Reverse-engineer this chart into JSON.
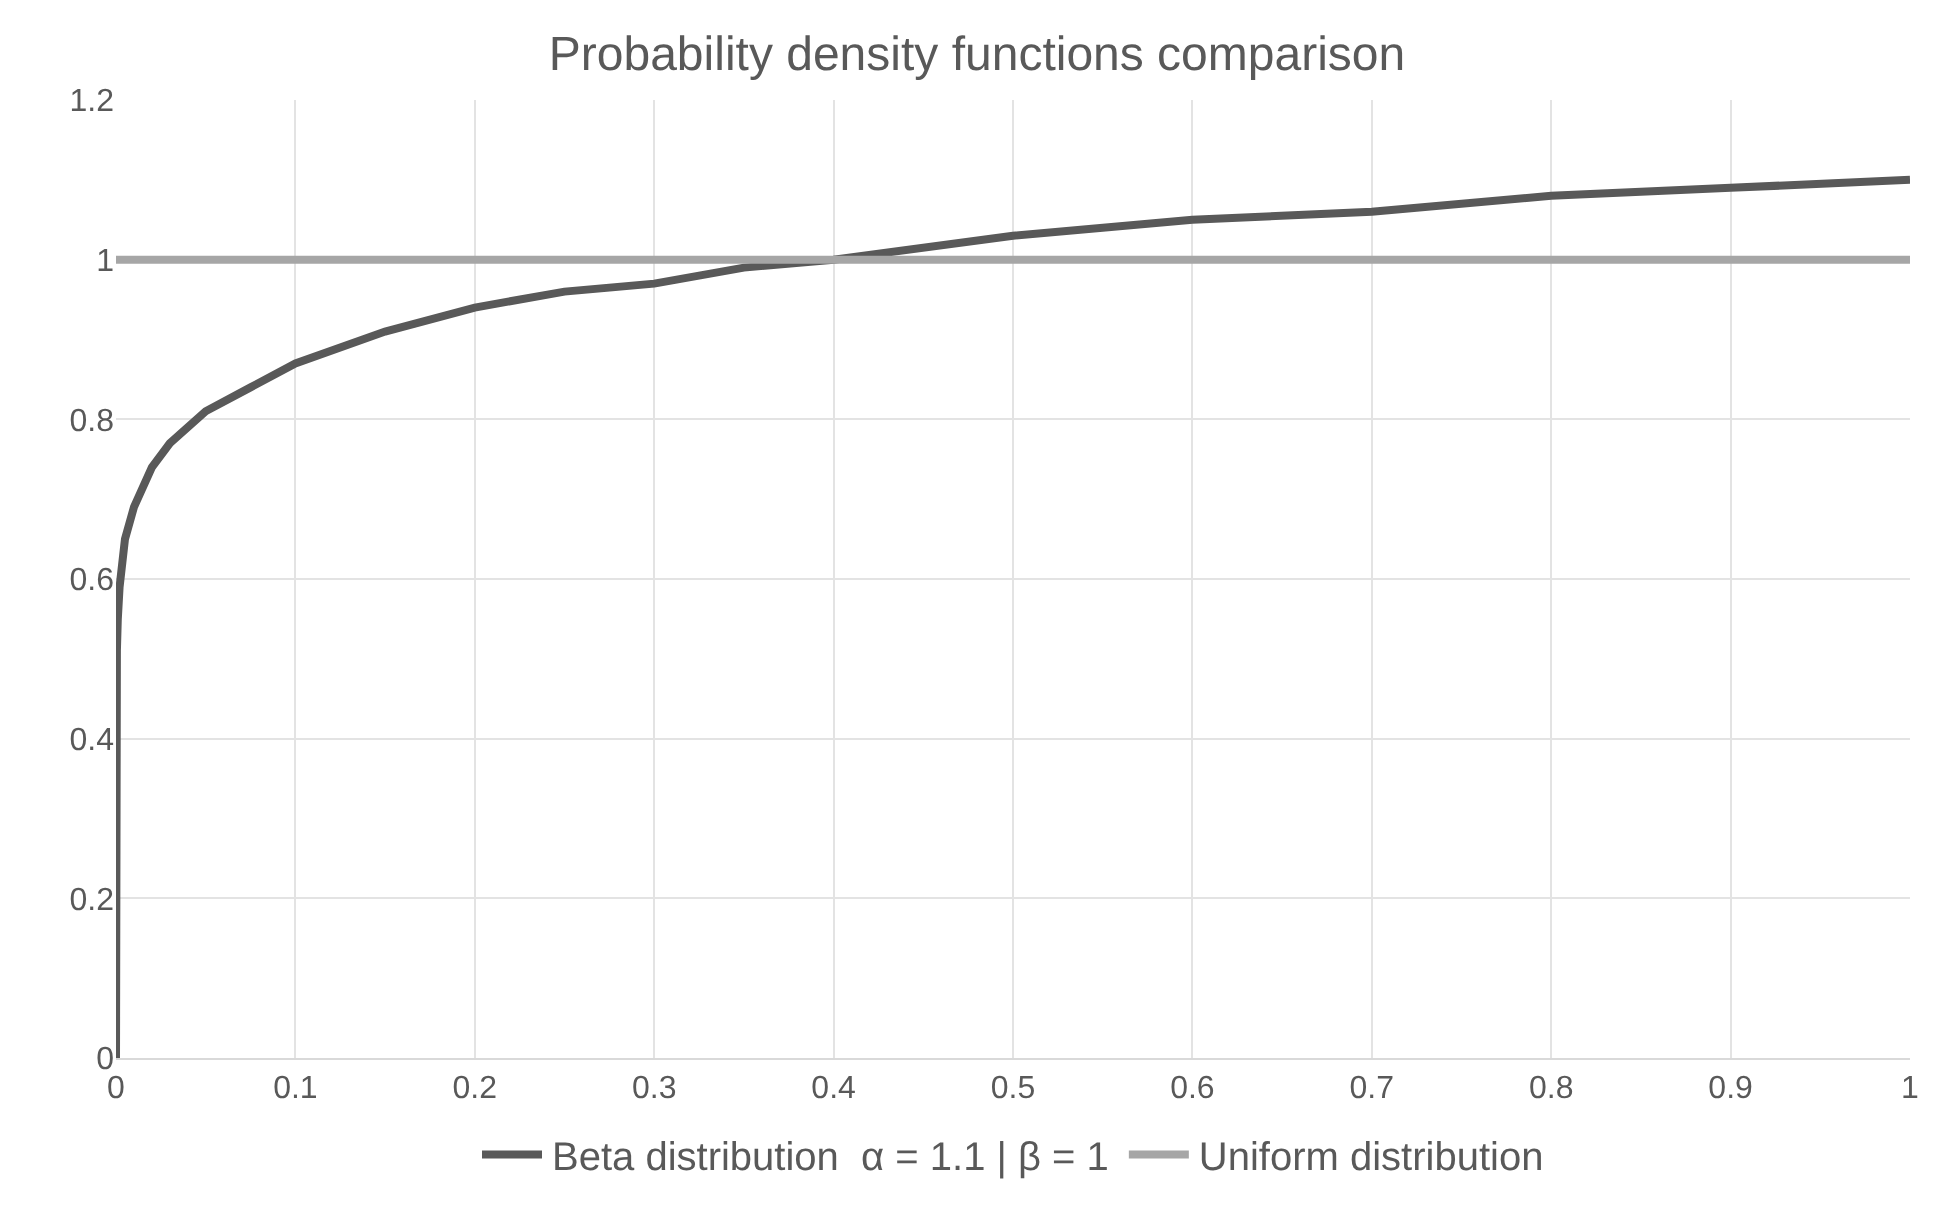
{
  "chart_data": {
    "type": "line",
    "title": "Probability density functions comparison",
    "xlim": [
      0,
      1
    ],
    "xticks": [
      0,
      0.1,
      0.2,
      0.3,
      0.4,
      0.5,
      0.6,
      0.7,
      0.8,
      0.9,
      1
    ],
    "ylim": [
      0,
      1.2
    ],
    "yticks": [
      0,
      0.2,
      0.4,
      0.6,
      0.8,
      1,
      1.2
    ],
    "grid": true,
    "legend": "bottom",
    "marker": "none",
    "line_style": "solid",
    "series": [
      {
        "name": "Beta distribution  α = 1.1 | β = 1",
        "color": "#595959",
        "x": [
          0,
          0.0005,
          0.001,
          0.002,
          0.005,
          0.01,
          0.02,
          0.03,
          0.05,
          0.075,
          0.1,
          0.15,
          0.2,
          0.25,
          0.3,
          0.35,
          0.4,
          0.5,
          0.6,
          0.7,
          0.8,
          0.9,
          1
        ],
        "values": [
          0,
          0.51,
          0.55,
          0.59,
          0.65,
          0.69,
          0.74,
          0.77,
          0.81,
          0.84,
          0.87,
          0.91,
          0.94,
          0.96,
          0.97,
          0.99,
          1,
          1.03,
          1.05,
          1.06,
          1.08,
          1.09,
          1.1
        ]
      },
      {
        "name": "Uniform distribution",
        "color": "#a6a6a6",
        "x": [
          0,
          1
        ],
        "values": [
          1,
          1
        ]
      }
    ]
  }
}
